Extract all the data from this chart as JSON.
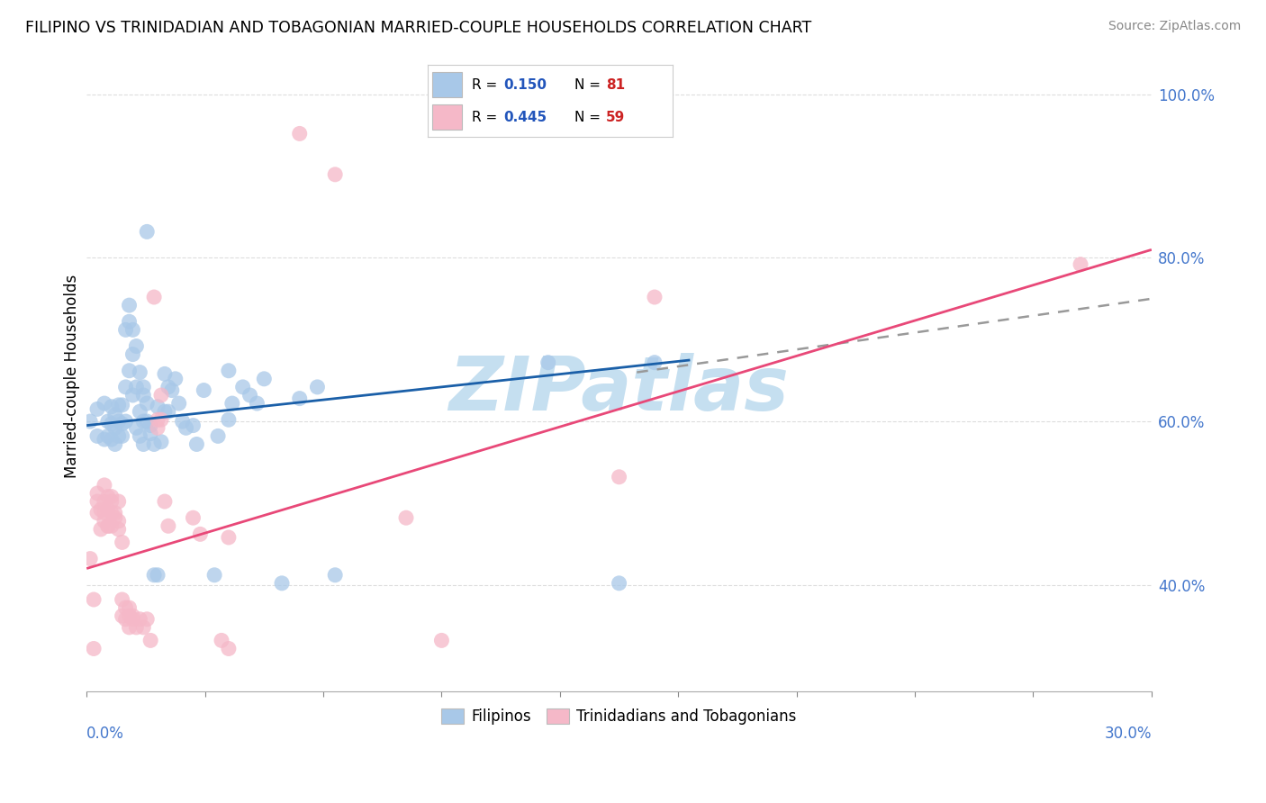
{
  "title": "FILIPINO VS TRINIDADIAN AND TOBAGONIAN MARRIED-COUPLE HOUSEHOLDS CORRELATION CHART",
  "source": "Source: ZipAtlas.com",
  "ylabel": "Married-couple Households",
  "ytick_labels": [
    "40.0%",
    "60.0%",
    "80.0%",
    "100.0%"
  ],
  "ytick_values": [
    0.4,
    0.6,
    0.8,
    1.0
  ],
  "xmin": 0.0,
  "xmax": 0.3,
  "ymin": 0.27,
  "ymax": 1.04,
  "blue_color": "#a8c8e8",
  "pink_color": "#f5b8c8",
  "blue_line_color": "#1a5fa8",
  "pink_line_color": "#e84878",
  "grid_color": "#dddddd",
  "blue_line_x": [
    0.0,
    0.17
  ],
  "blue_line_y": [
    0.595,
    0.675
  ],
  "pink_line_x": [
    0.0,
    0.3
  ],
  "pink_line_y": [
    0.42,
    0.81
  ],
  "dash_line_x": [
    0.155,
    0.3
  ],
  "dash_line_y": [
    0.66,
    0.75
  ],
  "blue_scatter": [
    [
      0.001,
      0.6
    ],
    [
      0.003,
      0.615
    ],
    [
      0.003,
      0.582
    ],
    [
      0.005,
      0.578
    ],
    [
      0.005,
      0.622
    ],
    [
      0.006,
      0.582
    ],
    [
      0.006,
      0.6
    ],
    [
      0.007,
      0.597
    ],
    [
      0.007,
      0.578
    ],
    [
      0.007,
      0.618
    ],
    [
      0.008,
      0.592
    ],
    [
      0.008,
      0.608
    ],
    [
      0.008,
      0.572
    ],
    [
      0.009,
      0.582
    ],
    [
      0.009,
      0.6
    ],
    [
      0.009,
      0.62
    ],
    [
      0.01,
      0.597
    ],
    [
      0.01,
      0.582
    ],
    [
      0.01,
      0.62
    ],
    [
      0.011,
      0.642
    ],
    [
      0.011,
      0.6
    ],
    [
      0.011,
      0.712
    ],
    [
      0.012,
      0.662
    ],
    [
      0.012,
      0.722
    ],
    [
      0.012,
      0.742
    ],
    [
      0.013,
      0.682
    ],
    [
      0.013,
      0.712
    ],
    [
      0.013,
      0.632
    ],
    [
      0.014,
      0.692
    ],
    [
      0.014,
      0.642
    ],
    [
      0.014,
      0.592
    ],
    [
      0.015,
      0.612
    ],
    [
      0.015,
      0.66
    ],
    [
      0.015,
      0.582
    ],
    [
      0.016,
      0.6
    ],
    [
      0.016,
      0.632
    ],
    [
      0.016,
      0.642
    ],
    [
      0.016,
      0.572
    ],
    [
      0.017,
      0.6
    ],
    [
      0.017,
      0.622
    ],
    [
      0.017,
      0.832
    ],
    [
      0.018,
      0.595
    ],
    [
      0.018,
      0.585
    ],
    [
      0.019,
      0.572
    ],
    [
      0.019,
      0.412
    ],
    [
      0.02,
      0.412
    ],
    [
      0.02,
      0.618
    ],
    [
      0.021,
      0.575
    ],
    [
      0.022,
      0.612
    ],
    [
      0.022,
      0.658
    ],
    [
      0.023,
      0.642
    ],
    [
      0.023,
      0.612
    ],
    [
      0.024,
      0.638
    ],
    [
      0.025,
      0.652
    ],
    [
      0.026,
      0.622
    ],
    [
      0.027,
      0.6
    ],
    [
      0.028,
      0.592
    ],
    [
      0.03,
      0.595
    ],
    [
      0.031,
      0.572
    ],
    [
      0.033,
      0.638
    ],
    [
      0.036,
      0.412
    ],
    [
      0.037,
      0.582
    ],
    [
      0.04,
      0.602
    ],
    [
      0.04,
      0.662
    ],
    [
      0.041,
      0.622
    ],
    [
      0.044,
      0.642
    ],
    [
      0.046,
      0.632
    ],
    [
      0.048,
      0.622
    ],
    [
      0.05,
      0.652
    ],
    [
      0.055,
      0.402
    ],
    [
      0.06,
      0.628
    ],
    [
      0.065,
      0.642
    ],
    [
      0.07,
      0.412
    ],
    [
      0.13,
      0.672
    ],
    [
      0.15,
      0.402
    ],
    [
      0.16,
      0.672
    ]
  ],
  "pink_scatter": [
    [
      0.001,
      0.432
    ],
    [
      0.002,
      0.382
    ],
    [
      0.002,
      0.322
    ],
    [
      0.003,
      0.512
    ],
    [
      0.003,
      0.502
    ],
    [
      0.003,
      0.488
    ],
    [
      0.004,
      0.468
    ],
    [
      0.004,
      0.492
    ],
    [
      0.005,
      0.488
    ],
    [
      0.005,
      0.502
    ],
    [
      0.005,
      0.478
    ],
    [
      0.005,
      0.522
    ],
    [
      0.006,
      0.492
    ],
    [
      0.006,
      0.472
    ],
    [
      0.006,
      0.508
    ],
    [
      0.006,
      0.472
    ],
    [
      0.007,
      0.508
    ],
    [
      0.007,
      0.488
    ],
    [
      0.007,
      0.502
    ],
    [
      0.007,
      0.472
    ],
    [
      0.008,
      0.488
    ],
    [
      0.008,
      0.482
    ],
    [
      0.009,
      0.468
    ],
    [
      0.009,
      0.478
    ],
    [
      0.009,
      0.502
    ],
    [
      0.01,
      0.362
    ],
    [
      0.01,
      0.452
    ],
    [
      0.01,
      0.382
    ],
    [
      0.011,
      0.372
    ],
    [
      0.011,
      0.358
    ],
    [
      0.012,
      0.362
    ],
    [
      0.012,
      0.372
    ],
    [
      0.012,
      0.348
    ],
    [
      0.013,
      0.358
    ],
    [
      0.013,
      0.362
    ],
    [
      0.014,
      0.348
    ],
    [
      0.015,
      0.358
    ],
    [
      0.016,
      0.348
    ],
    [
      0.017,
      0.358
    ],
    [
      0.018,
      0.332
    ],
    [
      0.019,
      0.752
    ],
    [
      0.02,
      0.592
    ],
    [
      0.02,
      0.602
    ],
    [
      0.021,
      0.632
    ],
    [
      0.021,
      0.602
    ],
    [
      0.022,
      0.502
    ],
    [
      0.023,
      0.472
    ],
    [
      0.03,
      0.482
    ],
    [
      0.032,
      0.462
    ],
    [
      0.038,
      0.332
    ],
    [
      0.04,
      0.458
    ],
    [
      0.04,
      0.322
    ],
    [
      0.06,
      0.952
    ],
    [
      0.07,
      0.902
    ],
    [
      0.09,
      0.482
    ],
    [
      0.1,
      0.332
    ],
    [
      0.15,
      0.532
    ],
    [
      0.16,
      0.752
    ],
    [
      0.28,
      0.792
    ]
  ],
  "watermark": "ZIPatlas",
  "watermark_color": "#c5dff0"
}
